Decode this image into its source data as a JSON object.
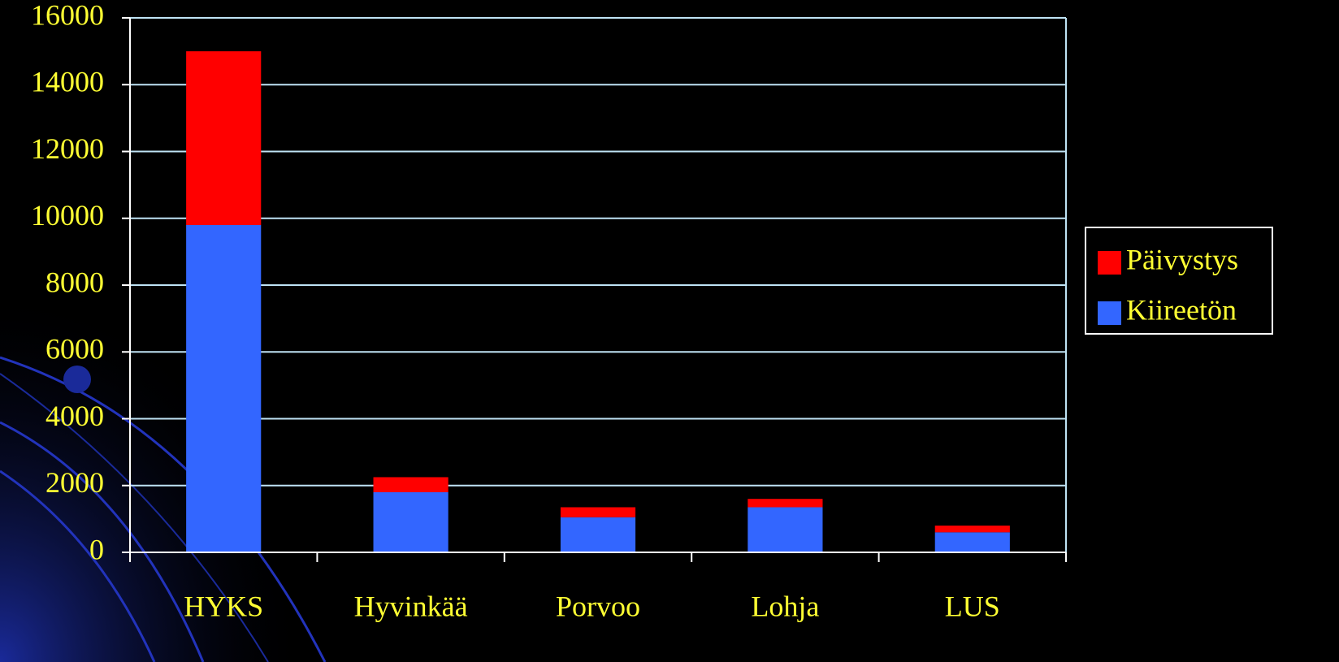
{
  "chart_data": {
    "type": "stacked_bar",
    "categories": [
      "HYKS",
      "Hyvinkää",
      "Porvoo",
      "Lohja",
      "LUS"
    ],
    "series": [
      {
        "name": "Kiireetön",
        "color": "#3366ff",
        "values": [
          9800,
          1800,
          1050,
          1350,
          600
        ]
      },
      {
        "name": "Päivystys",
        "color": "#ff0000",
        "values": [
          5200,
          450,
          300,
          250,
          200
        ]
      }
    ],
    "ylim": [
      0,
      16000
    ],
    "yticks": [
      0,
      2000,
      4000,
      6000,
      8000,
      10000,
      12000,
      14000,
      16000
    ],
    "grid": true,
    "legend": "right"
  }
}
